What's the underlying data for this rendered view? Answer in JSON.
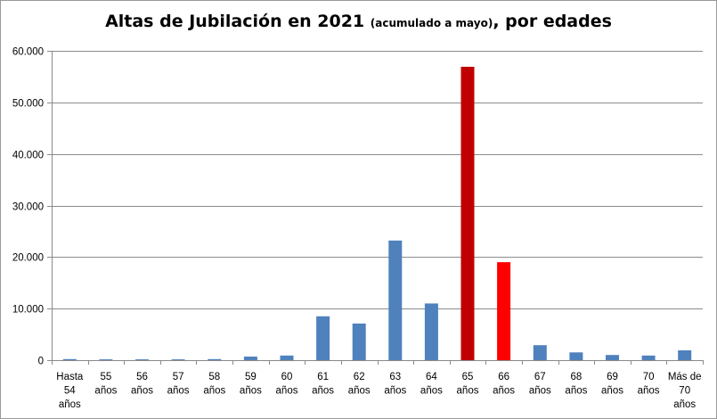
{
  "chart_data": {
    "type": "bar",
    "title": "Altas de Jubilación en 2021",
    "title_note": "(acumulado a mayo)",
    "title_tail": ", por edades",
    "xlabel": "",
    "ylabel": "",
    "ylim": [
      0,
      60000
    ],
    "yticks": [
      0,
      10000,
      20000,
      30000,
      40000,
      50000,
      60000
    ],
    "ytick_labels": [
      "0",
      "10.000",
      "20.000",
      "30.000",
      "40.000",
      "50.000",
      "60.000"
    ],
    "grid": true,
    "legend": "none",
    "categories": [
      [
        "Hasta",
        "54",
        "años"
      ],
      [
        "55",
        "años"
      ],
      [
        "56",
        "años"
      ],
      [
        "57",
        "años"
      ],
      [
        "58",
        "años"
      ],
      [
        "59",
        "años"
      ],
      [
        "60",
        "años"
      ],
      [
        "61",
        "años"
      ],
      [
        "62",
        "años"
      ],
      [
        "63",
        "años"
      ],
      [
        "64",
        "años"
      ],
      [
        "65",
        "años"
      ],
      [
        "66",
        "años"
      ],
      [
        "67",
        "años"
      ],
      [
        "68",
        "años"
      ],
      [
        "69",
        "años"
      ],
      [
        "70",
        "años"
      ],
      [
        "Más de",
        "70",
        "años"
      ]
    ],
    "values": [
      200,
      150,
      150,
      150,
      200,
      700,
      900,
      8500,
      7100,
      23200,
      11000,
      56900,
      19000,
      2900,
      1500,
      1000,
      900,
      1900
    ],
    "colors": [
      "#4f81bd",
      "#4f81bd",
      "#4f81bd",
      "#4f81bd",
      "#4f81bd",
      "#4f81bd",
      "#4f81bd",
      "#4f81bd",
      "#4f81bd",
      "#4f81bd",
      "#4f81bd",
      "#c00000",
      "#ff0000",
      "#4f81bd",
      "#4f81bd",
      "#4f81bd",
      "#4f81bd",
      "#4f81bd"
    ]
  }
}
